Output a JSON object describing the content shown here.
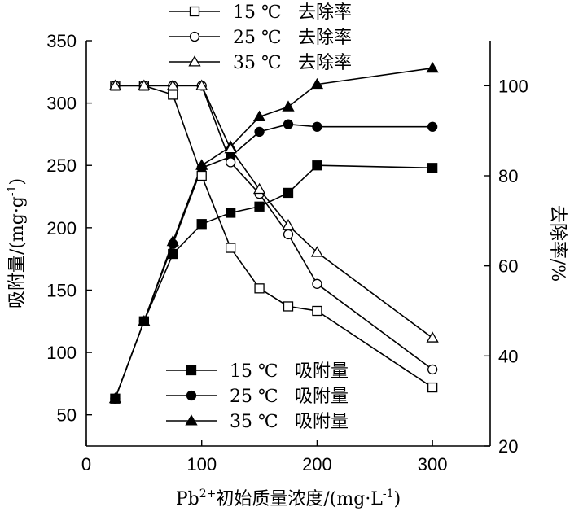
{
  "chart_data": {
    "type": "line",
    "x": [
      25,
      50,
      75,
      100,
      125,
      150,
      175,
      200,
      300
    ],
    "xlabel_parts": {
      "pre": "Pb",
      "sup": "2+",
      "post": "初始质量浓度/(mg·L",
      "sup2": "-1",
      "end": ")"
    },
    "ylabel_left_parts": {
      "pre": "吸附量/(mg·g",
      "sup": "-1",
      "end": ")"
    },
    "ylabel_right": "去除率/%",
    "xlim": [
      0,
      350
    ],
    "ylim_left": [
      25,
      350
    ],
    "ylim_right": [
      20,
      110
    ],
    "xticks": [
      0,
      100,
      200,
      300
    ],
    "yticks_left": [
      50,
      100,
      150,
      200,
      250,
      300,
      350
    ],
    "yticks_right": [
      20,
      40,
      60,
      80,
      100
    ],
    "grid": false,
    "legend_top_entries": [
      {
        "temp": "15 ℃",
        "label": "去除率",
        "marker": "square-open"
      },
      {
        "temp": "25 ℃",
        "label": "去除率",
        "marker": "circle-open"
      },
      {
        "temp": "35 ℃",
        "label": "去除率",
        "marker": "triangle-open"
      }
    ],
    "legend_bottom_entries": [
      {
        "temp": "15 ℃",
        "label": "吸附量",
        "marker": "square-filled"
      },
      {
        "temp": "25 ℃",
        "label": "吸附量",
        "marker": "circle-filled"
      },
      {
        "temp": "35 ℃",
        "label": "吸附量",
        "marker": "triangle-filled"
      }
    ],
    "series": [
      {
        "name": "15 ℃ 吸附量",
        "axis": "left",
        "marker": "square-filled",
        "values": [
          63,
          125,
          179,
          203,
          212,
          217,
          228,
          250,
          248
        ]
      },
      {
        "name": "25 ℃ 吸附量",
        "axis": "left",
        "marker": "circle-filled",
        "values": [
          63,
          125,
          187,
          248,
          257,
          277,
          283,
          281,
          281
        ]
      },
      {
        "name": "35 ℃ 吸附量",
        "axis": "left",
        "marker": "triangle-filled",
        "values": [
          63,
          125,
          189,
          250,
          265,
          289,
          297,
          315,
          328
        ]
      },
      {
        "name": "15 ℃ 去除率",
        "axis": "right",
        "marker": "square-open",
        "values": [
          100,
          100,
          98,
          80,
          64,
          55,
          51,
          50,
          33
        ]
      },
      {
        "name": "25 ℃ 去除率",
        "axis": "right",
        "marker": "circle-open",
        "values": [
          100,
          100,
          100,
          100,
          83,
          76,
          67,
          56,
          37
        ]
      },
      {
        "name": "35 ℃ 去除率",
        "axis": "right",
        "marker": "triangle-open",
        "values": [
          100,
          100,
          100,
          100,
          86,
          77,
          69,
          63,
          44
        ]
      }
    ]
  }
}
